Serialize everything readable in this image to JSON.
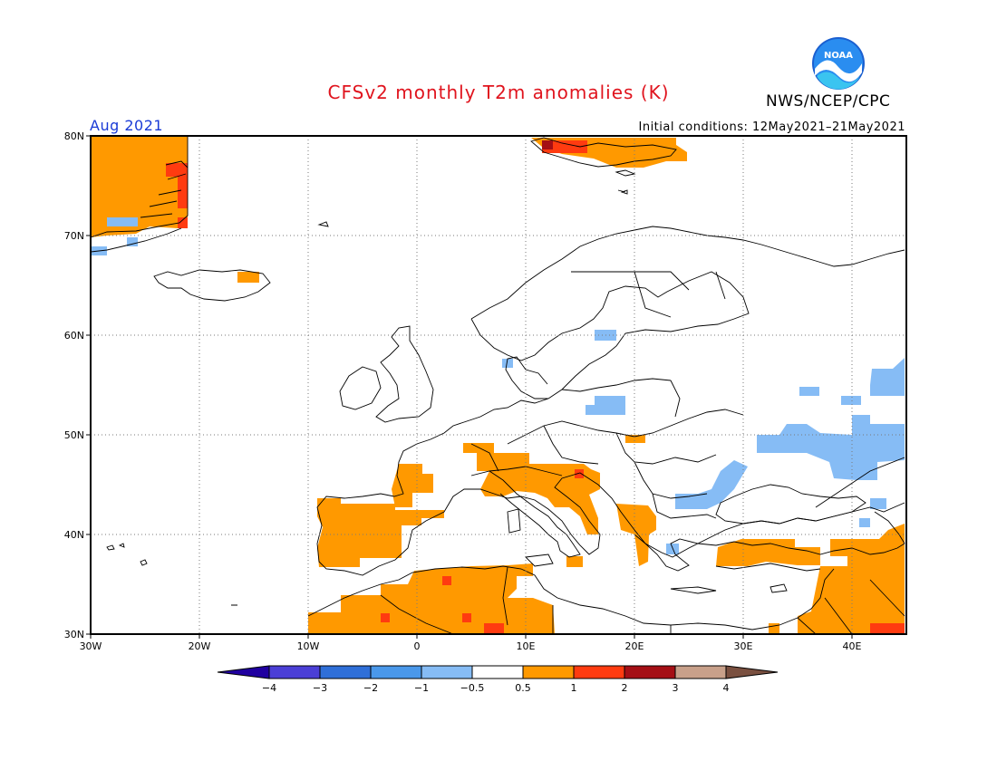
{
  "header": {
    "title": "CFSv2 monthly T2m anomalies (K)",
    "agency": "NWS/NCEP/CPC",
    "logo_text": "NOAA",
    "valid_month": "Aug 2021",
    "initial_conditions": "Initial conditions: 12May2021–21May2021"
  },
  "map": {
    "projection": "lat-lon",
    "region": "Europe / North Africa",
    "lon_range": [
      -30,
      45
    ],
    "lat_range": [
      30,
      80
    ],
    "lat_ticks": [
      "80N",
      "70N",
      "60N",
      "50N",
      "40N",
      "30N"
    ],
    "lon_ticks": [
      "30W",
      "20W",
      "10W",
      "0",
      "10E",
      "20E",
      "30E",
      "40E"
    ],
    "grid": true,
    "anomaly_regions": [
      {
        "name": "greenland-east",
        "category": "0.5 to 1"
      },
      {
        "name": "greenland-east-core",
        "category": "1 to 2"
      },
      {
        "name": "svalbard",
        "category": "0.5 to 1"
      },
      {
        "name": "svalbard-core",
        "category": "1 to 2"
      },
      {
        "name": "iceland-east",
        "category": "0.5 to 1"
      },
      {
        "name": "iberia",
        "category": "0.5 to 1"
      },
      {
        "name": "france-west",
        "category": "0.5 to 1"
      },
      {
        "name": "alps-italy-balkans",
        "category": "0.5 to 1"
      },
      {
        "name": "north-africa",
        "category": "0.5 to 1"
      },
      {
        "name": "north-africa-hotspots",
        "category": "1 to 2"
      },
      {
        "name": "turkey-middle-east",
        "category": "0.5 to 1"
      },
      {
        "name": "middle-east-hotspot",
        "category": "1 to 2"
      },
      {
        "name": "sweden-cool",
        "category": "-1 to -0.5"
      },
      {
        "name": "poland-cool",
        "category": "-1 to -0.5"
      },
      {
        "name": "romania-bulgaria-cool",
        "category": "-1 to -0.5"
      },
      {
        "name": "russia-ukraine-cool",
        "category": "-1 to -0.5"
      },
      {
        "name": "greenland-cool",
        "category": "-1 to -0.5"
      }
    ]
  },
  "colorbar": {
    "labels": [
      "−4",
      "−3",
      "−2",
      "−1",
      "−0.5",
      "0.5",
      "1",
      "2",
      "3",
      "4"
    ],
    "colors": [
      "#2000a0",
      "#4b3fd6",
      "#2f6fd8",
      "#4a98ea",
      "#86bcf5",
      "#ffffff",
      "#ff9900",
      "#ff3b10",
      "#a50f15",
      "#c8a08a",
      "#7a5040"
    ]
  }
}
